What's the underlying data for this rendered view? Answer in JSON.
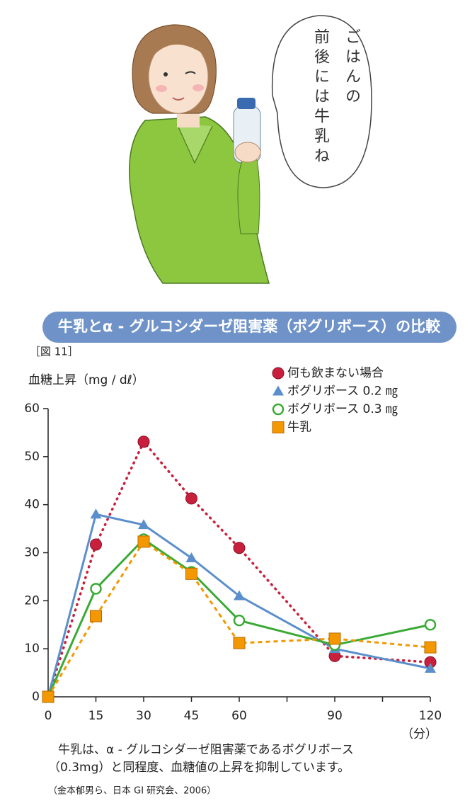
{
  "speech_bubble": {
    "lines": [
      "ごはんの",
      "前後には牛乳ね"
    ]
  },
  "chart_data": {
    "type": "line",
    "title": "牛乳とα - グルコシダーゼ阻害薬（ボグリボース）の比較",
    "figure_label": "［図 11］",
    "y_label": "血糖上昇（mg / dℓ）",
    "x_unit": "（分）",
    "x": [
      0,
      15,
      30,
      45,
      60,
      90,
      120
    ],
    "xlim": [
      0,
      120
    ],
    "xticks": [
      0,
      15,
      30,
      45,
      60,
      90,
      120
    ],
    "x_minor_ticks": [
      75,
      105
    ],
    "ylim": [
      0,
      60
    ],
    "yticks": [
      0,
      10,
      20,
      30,
      40,
      50,
      60
    ],
    "series": [
      {
        "name": "何も飲まない場合",
        "color": "#c8203c",
        "marker": "circle",
        "line_style": "dotted",
        "values": [
          0,
          31.7,
          53.1,
          41.3,
          31,
          8.5,
          7.2
        ]
      },
      {
        "name": "ボグリボース 0.2 ㎎",
        "color": "#5b8fcc",
        "marker": "triangle",
        "line_style": "solid",
        "values": [
          0,
          38,
          35.8,
          28.9,
          21,
          10,
          5.9
        ]
      },
      {
        "name": "ボグリボース 0.3 ㎎",
        "color": "#3aaa35",
        "marker": "open-circle",
        "line_style": "solid",
        "values": [
          0,
          22.5,
          32.8,
          26,
          15.9,
          10.8,
          15
        ]
      },
      {
        "name": "牛乳",
        "color": "#f39800",
        "marker": "square",
        "line_style": "dashed",
        "values": [
          0,
          16.8,
          32.3,
          25.6,
          11.2,
          12.1,
          10.3
        ]
      }
    ],
    "caption": [
      "牛乳は、α - グルコシダーゼ阻害薬であるボグリボース",
      "（0.3mg）と同程度、血糖値の上昇を抑制しています。"
    ],
    "source": "（金本郁男ら、日本 GI 研究会、2006）"
  }
}
